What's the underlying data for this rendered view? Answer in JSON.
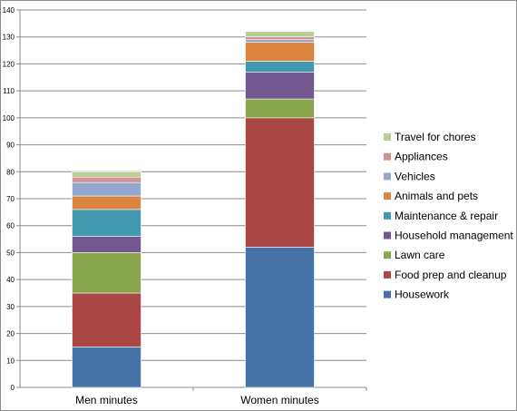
{
  "chart_data": {
    "type": "bar",
    "stacked": true,
    "categories": [
      "Men minutes",
      "Women minutes"
    ],
    "series": [
      {
        "name": "Housework",
        "color": "#4572A7",
        "values": [
          15,
          52
        ]
      },
      {
        "name": "Food prep and cleanup",
        "color": "#AA4643",
        "values": [
          20,
          48
        ]
      },
      {
        "name": "Lawn care",
        "color": "#89A54E",
        "values": [
          15,
          7
        ]
      },
      {
        "name": "Household management",
        "color": "#71588F",
        "values": [
          6,
          10
        ]
      },
      {
        "name": "Maintenance & repair",
        "color": "#4198AF",
        "values": [
          10,
          4
        ]
      },
      {
        "name": "Animals and pets",
        "color": "#DB843D",
        "values": [
          5,
          7
        ]
      },
      {
        "name": "Vehicles",
        "color": "#93A9CF",
        "values": [
          5,
          1
        ]
      },
      {
        "name": "Appliances",
        "color": "#D19392",
        "values": [
          2,
          1
        ]
      },
      {
        "name": "Travel for chores",
        "color": "#B9CD96",
        "values": [
          2,
          2
        ]
      }
    ],
    "ylim": [
      0,
      140
    ],
    "yticks": [
      0,
      10,
      20,
      30,
      40,
      50,
      60,
      70,
      80,
      90,
      100,
      110,
      120,
      130,
      140
    ],
    "title": "",
    "xlabel": "",
    "ylabel": "",
    "grid": true,
    "legend_position": "right"
  }
}
